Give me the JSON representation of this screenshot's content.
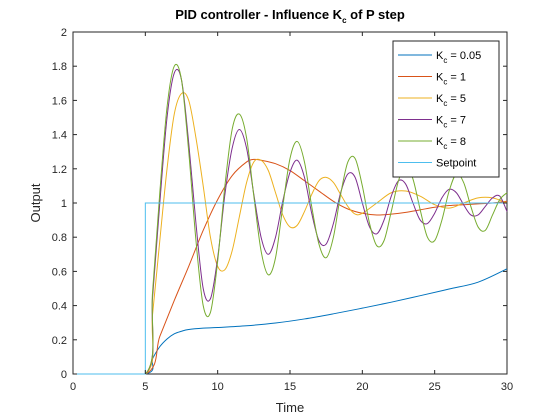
{
  "chart_data": {
    "type": "line",
    "title": {
      "main": "PID controller - Influence K",
      "sub": "c",
      "rest": " of P step"
    },
    "xlabel": "Time",
    "ylabel": "Output",
    "xlim": [
      0,
      30
    ],
    "ylim": [
      0,
      2
    ],
    "xticks": [
      0,
      5,
      10,
      15,
      20,
      25,
      30
    ],
    "xtick_labels": [
      "0",
      "5",
      "10",
      "15",
      "20",
      "25",
      "30"
    ],
    "yticks": [
      0,
      0.2,
      0.4,
      0.6,
      0.8,
      1,
      1.2,
      1.4,
      1.6,
      1.8,
      2
    ],
    "ytick_labels": [
      "0",
      "0.2",
      "0.4",
      "0.6",
      "0.8",
      "1",
      "1.2",
      "1.4",
      "1.6",
      "1.8",
      "2"
    ],
    "grid": false,
    "legend_position": "top-right",
    "series": [
      {
        "legend_main": "K",
        "legend_sub": "c",
        "legend_rest": " = 0.05",
        "color": "#0072BD",
        "x": [
          0,
          5,
          5.5,
          6,
          6.5,
          7,
          7.5,
          8,
          9,
          10,
          12,
          14,
          16,
          18,
          20,
          22,
          24,
          26,
          28,
          30
        ],
        "y": [
          0,
          0,
          0.09,
          0.16,
          0.205,
          0.235,
          0.25,
          0.26,
          0.268,
          0.272,
          0.282,
          0.298,
          0.322,
          0.352,
          0.385,
          0.42,
          0.458,
          0.497,
          0.537,
          0.615
        ]
      },
      {
        "legend_main": "K",
        "legend_sub": "c",
        "legend_rest": " = 1",
        "color": "#D95319",
        "x": [
          0,
          5,
          6,
          7,
          8,
          9,
          10,
          11,
          12,
          12.5,
          13,
          14,
          15,
          16,
          17,
          18,
          19,
          20,
          21,
          22,
          23,
          24,
          25,
          26,
          27,
          28,
          29,
          30
        ],
        "y": [
          0,
          0,
          0.22,
          0.43,
          0.63,
          0.84,
          1.02,
          1.16,
          1.24,
          1.255,
          1.25,
          1.23,
          1.19,
          1.13,
          1.07,
          1.01,
          0.965,
          0.94,
          0.93,
          0.935,
          0.945,
          0.96,
          0.975,
          0.985,
          0.99,
          0.995,
          1.0,
          1.01
        ]
      },
      {
        "legend_main": "K",
        "legend_sub": "c",
        "legend_rest": " = 5",
        "color": "#EDB120",
        "x": [
          0,
          5,
          5.5,
          6,
          6.5,
          7,
          7.5,
          8,
          8.5,
          9,
          9.5,
          10,
          10.5,
          11,
          11.5,
          12,
          12.5,
          13,
          13.5,
          14,
          14.5,
          15,
          15.5,
          16,
          16.5,
          17,
          17.5,
          18,
          18.5,
          19,
          19.5,
          20,
          21,
          22,
          23,
          24,
          25,
          26,
          27,
          28,
          29,
          30
        ],
        "y": [
          0,
          0,
          0.35,
          0.78,
          1.2,
          1.52,
          1.64,
          1.6,
          1.38,
          1.1,
          0.8,
          0.63,
          0.61,
          0.72,
          0.92,
          1.12,
          1.24,
          1.25,
          1.19,
          1.06,
          0.93,
          0.86,
          0.87,
          0.95,
          1.05,
          1.13,
          1.15,
          1.12,
          1.05,
          0.98,
          0.935,
          0.94,
          1.0,
          1.06,
          1.07,
          1.04,
          0.99,
          0.97,
          1.0,
          1.03,
          1.03,
          1.0
        ]
      },
      {
        "legend_main": "K",
        "legend_sub": "c",
        "legend_rest": " = 7",
        "color": "#7E2F8E",
        "x": [
          0,
          5,
          5.5,
          6,
          6.5,
          7,
          7.5,
          8,
          8.5,
          9,
          9.5,
          10,
          10.5,
          11,
          11.5,
          12,
          12.5,
          13,
          13.5,
          14,
          14.5,
          15,
          15.5,
          16,
          16.5,
          17,
          17.5,
          18,
          18.5,
          19,
          19.5,
          20,
          20.5,
          21,
          21.5,
          22,
          22.5,
          23,
          23.5,
          24,
          24.5,
          25,
          25.5,
          26,
          26.5,
          27,
          27.5,
          28,
          28.5,
          29,
          29.5,
          30
        ],
        "y": [
          0,
          0,
          0.45,
          1.0,
          1.5,
          1.76,
          1.72,
          1.35,
          0.88,
          0.5,
          0.44,
          0.68,
          1.05,
          1.32,
          1.43,
          1.32,
          1.05,
          0.8,
          0.7,
          0.8,
          1.01,
          1.18,
          1.25,
          1.15,
          0.94,
          0.78,
          0.76,
          0.88,
          1.06,
          1.17,
          1.15,
          1.0,
          0.86,
          0.82,
          0.9,
          1.04,
          1.13,
          1.11,
          1.0,
          0.9,
          0.88,
          0.94,
          1.03,
          1.08,
          1.06,
          0.99,
          0.93,
          0.93,
          0.98,
          1.03,
          1.04,
          0.95
        ]
      },
      {
        "legend_main": "K",
        "legend_sub": "c",
        "legend_rest": " = 8",
        "color": "#77AC30",
        "x": [
          0,
          5,
          5.5,
          6,
          6.5,
          7,
          7.5,
          8,
          8.5,
          9,
          9.5,
          10,
          10.5,
          11,
          11.5,
          12,
          12.5,
          13,
          13.5,
          14,
          14.5,
          15,
          15.5,
          16,
          16.5,
          17,
          17.5,
          18,
          18.5,
          19,
          19.5,
          20,
          20.5,
          21,
          21.5,
          22,
          22.5,
          23,
          23.5,
          24,
          24.5,
          25,
          25.5,
          26,
          26.5,
          27,
          27.5,
          28,
          28.5,
          29,
          29.5,
          30
        ],
        "y": [
          0,
          0,
          0.48,
          1.06,
          1.56,
          1.8,
          1.72,
          1.3,
          0.78,
          0.4,
          0.36,
          0.66,
          1.1,
          1.43,
          1.52,
          1.38,
          1.04,
          0.72,
          0.58,
          0.68,
          0.98,
          1.26,
          1.36,
          1.24,
          0.98,
          0.76,
          0.68,
          0.8,
          1.05,
          1.24,
          1.26,
          1.1,
          0.88,
          0.75,
          0.78,
          0.95,
          1.13,
          1.22,
          1.14,
          0.96,
          0.8,
          0.78,
          0.9,
          1.07,
          1.17,
          1.12,
          0.98,
          0.86,
          0.84,
          0.93,
          1.02,
          1.06
        ]
      },
      {
        "legend_main": "Setpoint",
        "legend_sub": "",
        "legend_rest": "",
        "color": "#4DBEEE",
        "x": [
          0,
          5,
          5,
          30
        ],
        "y": [
          0,
          0,
          1,
          1
        ]
      }
    ]
  }
}
